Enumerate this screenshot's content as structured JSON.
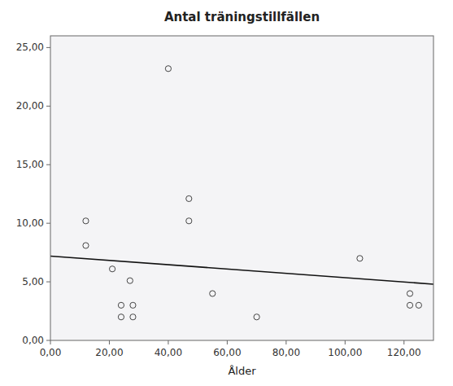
{
  "chart_data": {
    "type": "scatter",
    "title": "Antal träningstillfällen",
    "xlabel": "Ålder",
    "xlim": [
      0,
      130
    ],
    "ylim": [
      0,
      26
    ],
    "xticks": [
      {
        "value": 0,
        "label": "0,00"
      },
      {
        "value": 20,
        "label": "20,00"
      },
      {
        "value": 40,
        "label": "40,00"
      },
      {
        "value": 60,
        "label": "60,00"
      },
      {
        "value": 80,
        "label": "80,00"
      },
      {
        "value": 100,
        "label": "100,00"
      },
      {
        "value": 120,
        "label": "120,00"
      }
    ],
    "yticks": [
      {
        "value": 0,
        "label": "0,00"
      },
      {
        "value": 5,
        "label": "5,00"
      },
      {
        "value": 10,
        "label": "10,00"
      },
      {
        "value": 15,
        "label": "15,00"
      },
      {
        "value": 20,
        "label": "20,00"
      },
      {
        "value": 25,
        "label": "25,00"
      }
    ],
    "grid": false,
    "series": [
      {
        "type": "scatter",
        "color": "#444444",
        "marker": "circle",
        "x": [
          12,
          12,
          21,
          24,
          24,
          27,
          28,
          28,
          40,
          47,
          47,
          55,
          70,
          105,
          122,
          122,
          125
        ],
        "values": [
          10.2,
          8.1,
          6.1,
          3.0,
          2.0,
          5.1,
          3.0,
          2.0,
          23.2,
          12.1,
          10.2,
          4.0,
          2.0,
          7.0,
          4.0,
          3.0,
          3.0
        ]
      },
      {
        "type": "line",
        "color": "#111111",
        "line_style": "solid",
        "x": [
          0,
          130
        ],
        "values": [
          7.2,
          4.8
        ]
      }
    ]
  }
}
